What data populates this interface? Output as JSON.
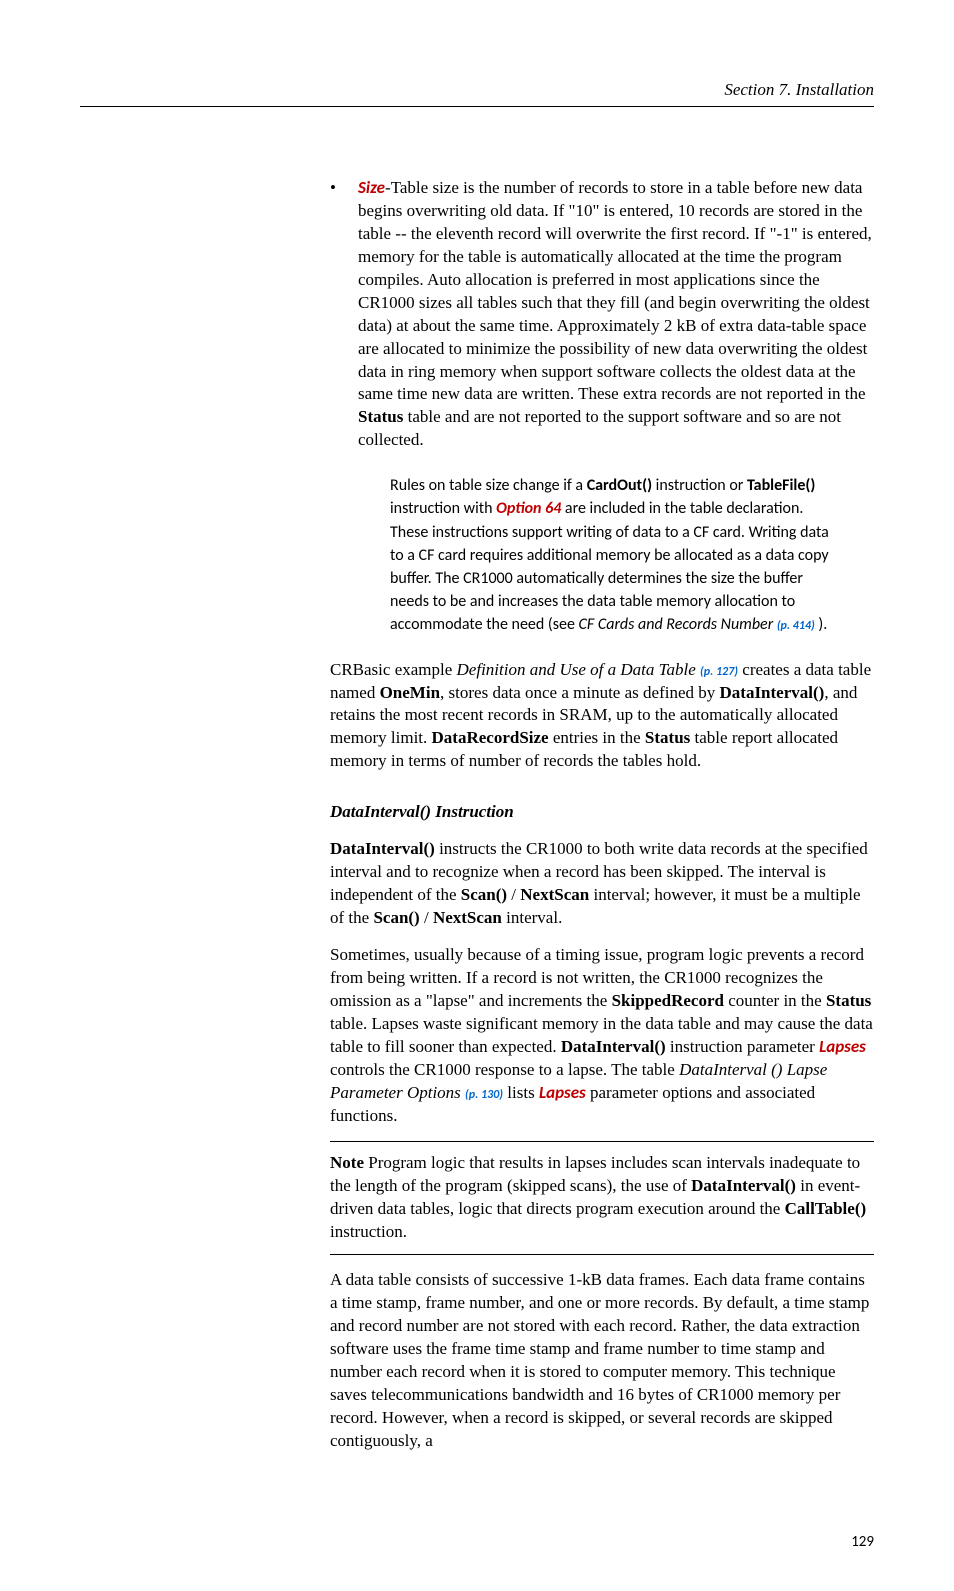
{
  "header": "Section 7.  Installation",
  "bullet": {
    "marker": "•",
    "size_label": "Size",
    "dash": "-",
    "body_pre": "Table size is the number of records to store in a table before new data begins overwriting old data. If \"10\" is entered, 10 records are stored in the table -- the eleventh record will overwrite the first record. If \"-1\" is entered, memory for the table is automatically allocated at the time the program compiles. Auto allocation is preferred in most applications since the CR1000 sizes all tables such that they fill (and begin overwriting the oldest data) at about the same time.  Approximately 2 kB of extra data-table space are allocated to minimize the possibility of new data overwriting the oldest data in ring memory when support software collects the oldest data at the same time new data are written.  These extra records are not reported in the ",
    "status_word": "Status",
    "body_post": " table and are not reported to the support software and so are not collected."
  },
  "inset": {
    "pre": "Rules on table size change if a ",
    "cardout": "CardOut()",
    "mid1": " instruction or ",
    "tablefile": "TableFile()",
    "mid2": " instruction with ",
    "option64": "Option 64",
    "mid3": " are included in the table declaration.  These instructions support writing of data to a CF card.  Writing data to a CF card requires additional memory be allocated as a data copy buffer.  The CR1000 automatically determines the size the buffer needs to be and increases the data table memory allocation to accommodate the need (see ",
    "cfcards": "CF Cards and Records Number",
    "ref": "(p. 414)",
    "post": " )."
  },
  "para1": {
    "pre": "CRBasic example ",
    "ital": "Definition and Use of a Data Table ",
    "ref": "(p. 127)",
    "mid1": " creates a data table named ",
    "onemin": "OneMin",
    "mid2": ", stores data once a minute as defined by ",
    "datainterval": "DataInterval()",
    "mid3": ", and retains the most recent records in SRAM, up to the automatically allocated memory limit. ",
    "datarecordsize": "DataRecordSize",
    "mid4": " entries in the ",
    "status": "Status",
    "post": " table report allocated memory in terms of number of records the tables hold."
  },
  "subheading": "DataInterval() Instruction",
  "para2": {
    "b1": "DataInterval()",
    "t1": " instructs the CR1000 to both write data records at the specified interval and to recognize when a record has been skipped. The interval is independent of the ",
    "b2": "Scan()",
    "t2": " / ",
    "b3": "NextScan",
    "t3": " interval; however, it must be a multiple of the ",
    "b4": "Scan()",
    "t4": " / ",
    "b5": "NextScan",
    "t5": " interval."
  },
  "para3": {
    "t1": "Sometimes, usually because of a timing issue, program logic prevents a record from being written. If a record is not written, the CR1000 recognizes the omission as a \"lapse\" and increments the ",
    "b1": "SkippedRecord",
    "t2": " counter in the ",
    "b2": "Status",
    "t3": " table. Lapses waste significant memory in the data table and may cause the data table to fill sooner than expected. ",
    "b3": "DataInterval()",
    "t4": " instruction parameter ",
    "lapses1": "Lapses",
    "t5": " controls the CR1000 response to a lapse. The table ",
    "ital": "DataInterval () Lapse Parameter Options ",
    "ref": "(p. 130)",
    "t6": " lists ",
    "lapses2": "Lapses",
    "t7": " parameter options and associated functions."
  },
  "note": {
    "label": "Note",
    "t1": "  Program logic that results in lapses includes scan intervals inadequate to the length of the program (skipped scans), the use of ",
    "b1": "DataInterval()",
    "t2": " in event-driven data tables, logic that directs program execution around the ",
    "b2": "CallTable()",
    "t3": " instruction."
  },
  "para4": "A data table consists of successive 1-kB data frames. Each data frame contains a time stamp, frame number, and one or more records. By default, a time stamp and record number are not stored with each record. Rather, the data extraction software uses the frame time stamp and frame number to time stamp and number each record when it is stored to computer memory. This technique saves telecommunications bandwidth and 16 bytes of CR1000 memory per record. However, when a record is skipped, or several records are skipped contiguously, a",
  "page_number": "129"
}
